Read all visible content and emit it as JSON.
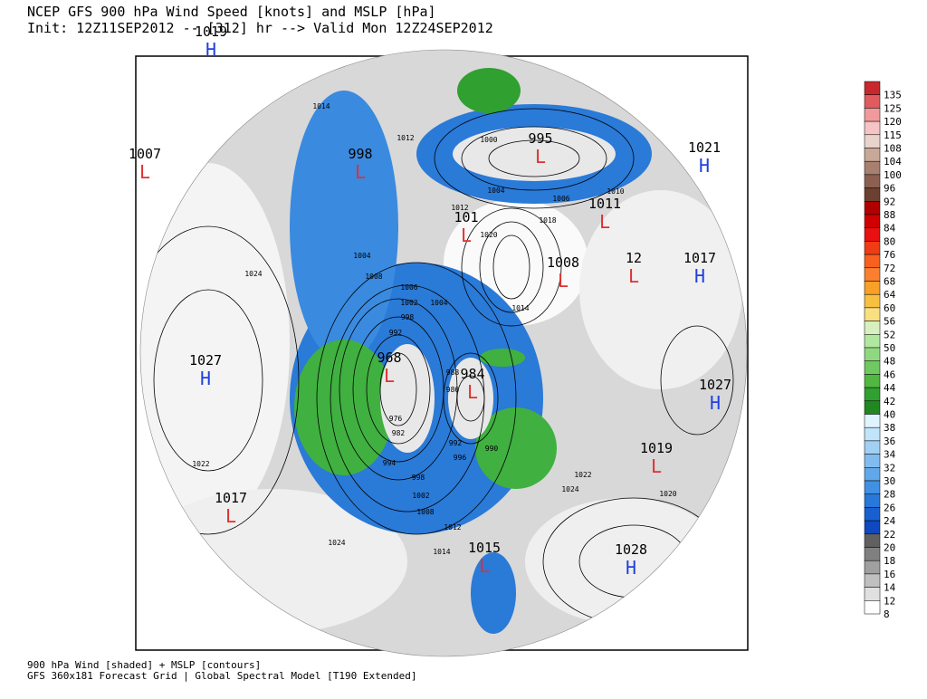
{
  "header": {
    "title": "NCEP GFS 900 hPa Wind Speed [knots] and MSLP [hPa]",
    "subtitle": "Init: 12Z11SEP2012 -- [312] hr --> Valid Mon 12Z24SEP2012"
  },
  "colorbar": {
    "levels": [
      135,
      125,
      120,
      115,
      108,
      104,
      100,
      96,
      92,
      88,
      84,
      80,
      76,
      72,
      68,
      64,
      60,
      56,
      52,
      50,
      48,
      46,
      44,
      42,
      40,
      38,
      36,
      34,
      32,
      30,
      28,
      26,
      24,
      22,
      20,
      18,
      16,
      14,
      12,
      8
    ],
    "colors": [
      "#c8282c",
      "#e05a5f",
      "#f09a9c",
      "#f5c4c4",
      "#e8d4cc",
      "#c8a898",
      "#a88070",
      "#8c6050",
      "#6c4030",
      "#b00000",
      "#d00000",
      "#e81010",
      "#f03c14",
      "#f86020",
      "#fa8030",
      "#f8a028",
      "#f8c040",
      "#f8e080",
      "#d8f0c0",
      "#b0e8a0",
      "#90d880",
      "#70c860",
      "#50b840",
      "#30a030",
      "#208820",
      "#e0f4ff",
      "#c0e4fa",
      "#a0d0f4",
      "#80bcf0",
      "#60a8ea",
      "#4090e4",
      "#2878dc",
      "#1860d0",
      "#1048c0",
      "#606060",
      "#808080",
      "#a0a0a0",
      "#c0c0c0",
      "#e0e0e0",
      "#ffffff"
    ]
  },
  "centers": [
    {
      "letter": "H",
      "value": "1019"
    },
    {
      "letter": "L",
      "value": "1007"
    },
    {
      "letter": "L",
      "value": "998"
    },
    {
      "letter": "L",
      "value": "995"
    },
    {
      "letter": "L",
      "value": "101"
    },
    {
      "letter": "H",
      "value": "1021"
    },
    {
      "letter": "L",
      "value": "1011"
    },
    {
      "letter": "L",
      "value": "1008"
    },
    {
      "letter": "L",
      "value": "12"
    },
    {
      "letter": "H",
      "value": "1017"
    },
    {
      "letter": "H",
      "value": "1027"
    },
    {
      "letter": "L",
      "value": "968"
    },
    {
      "letter": "L",
      "value": "984"
    },
    {
      "letter": "H",
      "value": "1027"
    },
    {
      "letter": "L",
      "value": "1019"
    },
    {
      "letter": "L",
      "value": "1017"
    },
    {
      "letter": "L",
      "value": "1015"
    },
    {
      "letter": "H",
      "value": "1028"
    }
  ],
  "contour_labels": [
    "1014",
    "1012",
    "1004",
    "1008",
    "1006",
    "1002",
    "1004",
    "998",
    "992",
    "976",
    "982",
    "994",
    "998",
    "1002",
    "1008",
    "1012",
    "988",
    "986",
    "992",
    "996",
    "990",
    "1000",
    "1004",
    "1006",
    "1010",
    "1012",
    "1018",
    "1020",
    "1014",
    "1024",
    "1022",
    "1024",
    "1014",
    "1022",
    "1024",
    "1020"
  ],
  "footer": {
    "line1": "900 hPa Wind [shaded] + MSLP [contours]",
    "line2": "GFS 360x181 Forecast Grid | Global Spectral Model [T190 Extended]"
  }
}
